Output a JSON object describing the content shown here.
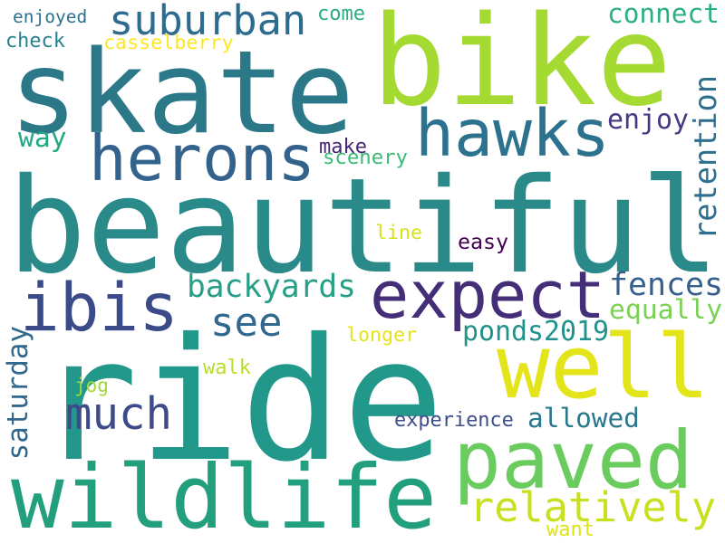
{
  "words": [
    {
      "text": "beautiful",
      "color": "#2a8a8a"
    },
    {
      "text": "ride",
      "color": "#22988a"
    },
    {
      "text": "bike",
      "color": "#a4da32"
    },
    {
      "text": "skate",
      "color": "#2a7888"
    },
    {
      "text": "wildlife",
      "color": "#22a07e"
    },
    {
      "text": "paved",
      "color": "#6acc5e"
    },
    {
      "text": "well",
      "color": "#e4e41a"
    },
    {
      "text": "expect",
      "color": "#452e78"
    },
    {
      "text": "herons",
      "color": "#33638d"
    },
    {
      "text": "hawks",
      "color": "#2c728e"
    },
    {
      "text": "ibis",
      "color": "#3b4b8a"
    },
    {
      "text": "suburban",
      "color": "#2d6c8e"
    },
    {
      "text": "relatively",
      "color": "#c8e020"
    },
    {
      "text": "see",
      "color": "#31698e"
    },
    {
      "text": "much",
      "color": "#3e4a89"
    },
    {
      "text": "backyards",
      "color": "#25a087"
    },
    {
      "text": "fences",
      "color": "#355f8d"
    },
    {
      "text": "equally",
      "color": "#7ad151"
    },
    {
      "text": "ponds2019",
      "color": "#21918c"
    },
    {
      "text": "allowed",
      "color": "#2a788e"
    },
    {
      "text": "retention",
      "color": "#2e6e8e"
    },
    {
      "text": "connect",
      "color": "#2bb07f"
    },
    {
      "text": "enjoy",
      "color": "#443983"
    },
    {
      "text": "way",
      "color": "#22a884"
    },
    {
      "text": "saturday",
      "color": "#31688e"
    },
    {
      "text": "experience",
      "color": "#3d4e8a"
    },
    {
      "text": "enjoyed",
      "color": "#2d708e"
    },
    {
      "text": "check",
      "color": "#26828e"
    },
    {
      "text": "casselberry",
      "color": "#fde725"
    },
    {
      "text": "come",
      "color": "#2bae80"
    },
    {
      "text": "make",
      "color": "#482475"
    },
    {
      "text": "scenery",
      "color": "#3bbb75"
    },
    {
      "text": "line",
      "color": "#d8e219"
    },
    {
      "text": "easy",
      "color": "#440154"
    },
    {
      "text": "longer",
      "color": "#e5e419"
    },
    {
      "text": "walk",
      "color": "#b8de29"
    },
    {
      "text": "jog",
      "color": "#a0da39"
    },
    {
      "text": "want",
      "color": "#dde318"
    }
  ]
}
